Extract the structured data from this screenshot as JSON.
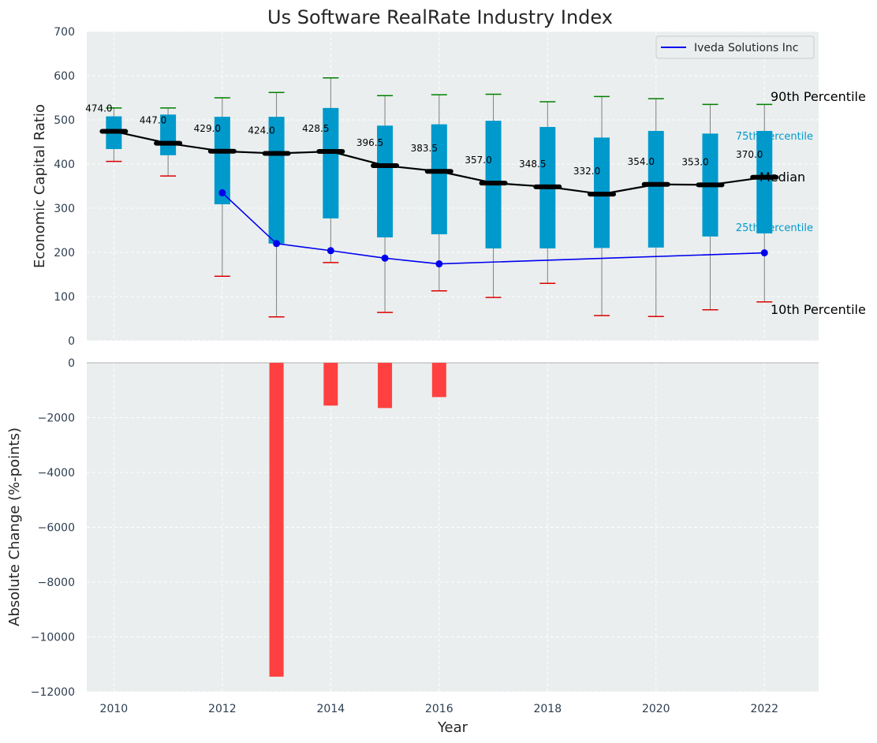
{
  "chart_data": {
    "type": "box-and-bar",
    "title": "Us Software RealRate Industry Index",
    "xlabel": "Year",
    "top_panel": {
      "ylabel": "Economic Capital Ratio",
      "ylim": [
        0,
        700
      ],
      "yticks": [
        0,
        100,
        200,
        300,
        400,
        500,
        600,
        700
      ],
      "years": [
        2010,
        2011,
        2012,
        2013,
        2014,
        2015,
        2016,
        2017,
        2018,
        2019,
        2020,
        2021,
        2022
      ],
      "p90": [
        527,
        527,
        550,
        562,
        595,
        555,
        557,
        558,
        541,
        553,
        548,
        535,
        535
      ],
      "p75": [
        508,
        512,
        507,
        507,
        527,
        487,
        490,
        498,
        484,
        460,
        475,
        469,
        475
      ],
      "median": [
        474.0,
        447.0,
        429.0,
        424.0,
        428.5,
        396.5,
        383.5,
        357.0,
        348.5,
        332.0,
        354.0,
        353.0,
        370.0
      ],
      "p25": [
        434,
        420,
        309,
        220,
        277,
        234,
        241,
        209,
        209,
        210,
        211,
        236,
        243
      ],
      "p10": [
        406,
        373,
        146,
        54,
        177,
        64,
        113,
        98,
        130,
        57,
        55,
        70,
        88
      ],
      "median_labels": [
        "474.0",
        "447.0",
        "429.0",
        "424.0",
        "428.5",
        "396.5",
        "383.5",
        "357.0",
        "348.5",
        "332.0",
        "354.0",
        "353.0",
        "370.0"
      ],
      "series": [
        {
          "name": "Iveda Solutions Inc",
          "color": "#0000ee",
          "x": [
            2012,
            2013,
            2014,
            2015,
            2016,
            2022
          ],
          "y": [
            335,
            220,
            204,
            187,
            174,
            199
          ]
        }
      ],
      "side_labels": {
        "p90": "90th Percentile",
        "p75": "75th Percentile",
        "median": "Median",
        "p25": "25th Percentile",
        "p10": "10th Percentile"
      },
      "legend_position": "top-right"
    },
    "bottom_panel": {
      "type": "bar",
      "ylabel": "Absolute Change (%-points)",
      "ylim": [
        -12000,
        0
      ],
      "yticks": [
        0,
        -2000,
        -4000,
        -6000,
        -8000,
        -10000,
        -12000
      ],
      "x": [
        2013,
        2014,
        2015,
        2016
      ],
      "values": [
        -11450,
        -1560,
        -1650,
        -1250
      ],
      "color": "#ff4040"
    },
    "xticks": [
      2010,
      2012,
      2014,
      2016,
      2018,
      2020,
      2022
    ],
    "xlim": [
      2009.5,
      2023
    ],
    "colors": {
      "box": "#0099cc",
      "p90_cap": "#008000",
      "p10_cap": "#dd0000",
      "median": "#000000",
      "background": "#eaeeee",
      "grid": "#ffffff"
    }
  }
}
